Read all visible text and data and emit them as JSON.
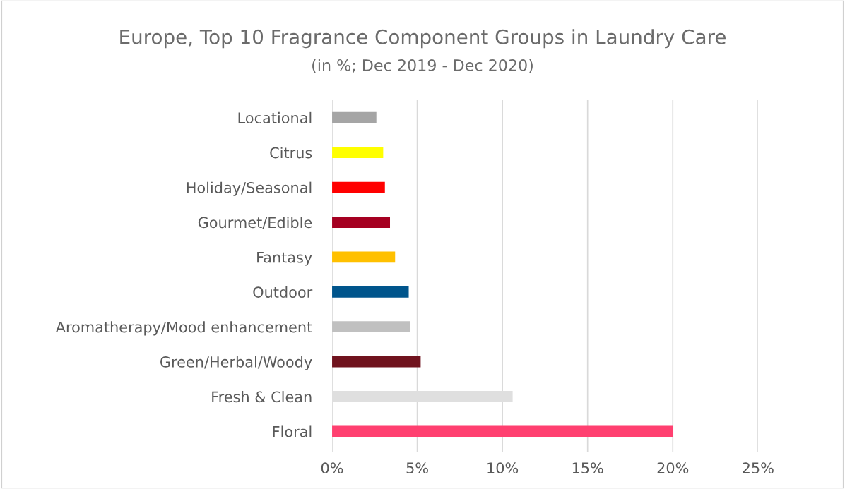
{
  "chart_data": {
    "type": "bar",
    "orientation": "horizontal",
    "title": "Europe, Top 10 Fragrance Component Groups in Laundry Care",
    "subtitle": "(in %; Dec 2019 - Dec 2020)",
    "categories": [
      "Locational",
      "Citrus",
      "Holiday/Seasonal",
      "Gourmet/Edible",
      "Fantasy",
      "Outdoor",
      "Aromatherapy/Mood enhancement",
      "Green/Herbal/Woody",
      "Fresh & Clean",
      "Floral"
    ],
    "values": [
      2.6,
      3.0,
      3.1,
      3.4,
      3.7,
      4.5,
      4.6,
      5.2,
      10.6,
      20.0
    ],
    "colors": [
      "#a5a5a5",
      "#ffff00",
      "#ff0000",
      "#a50021",
      "#ffc000",
      "#00558c",
      "#c0c0c0",
      "#70131e",
      "#dfdfdf",
      "#ff4070"
    ],
    "xlim": [
      0,
      25
    ],
    "xticks": [
      {
        "value": 0,
        "label": "0%"
      },
      {
        "value": 5,
        "label": "5%"
      },
      {
        "value": 10,
        "label": "10%"
      },
      {
        "value": 15,
        "label": "15%"
      },
      {
        "value": 20,
        "label": "20%"
      },
      {
        "value": 25,
        "label": "25%"
      }
    ],
    "grid": "x"
  }
}
